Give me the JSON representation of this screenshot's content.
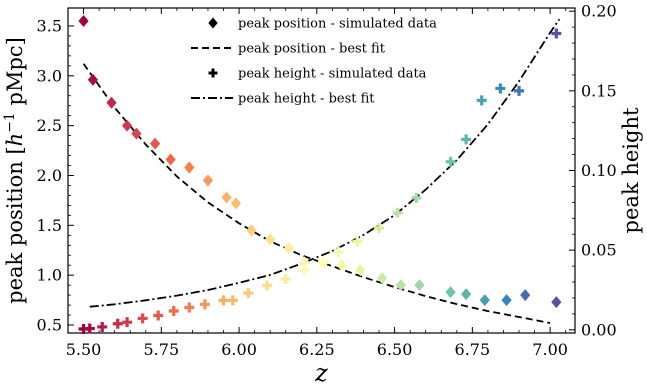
{
  "chart_data": {
    "type": "scatter",
    "title": "",
    "xlabel": "z",
    "ylabel_left": "peak position [h⁻¹ pMpc]",
    "ylabel_left_parts": [
      "peak position [",
      "h",
      "−1",
      " pMpc]"
    ],
    "ylabel_right": "peak height",
    "xlim": [
      5.45,
      7.08
    ],
    "ylim_left": [
      0.42,
      3.68
    ],
    "ylim_right": [
      -0.002,
      0.202
    ],
    "x_ticks": [
      5.5,
      5.75,
      6.0,
      6.25,
      6.5,
      6.75,
      7.0
    ],
    "x_tick_labels": [
      "5.50",
      "5.75",
      "6.00",
      "6.25",
      "6.50",
      "6.75",
      "7.00"
    ],
    "y_left_ticks": [
      0.5,
      1.0,
      1.5,
      2.0,
      2.5,
      3.0,
      3.5
    ],
    "y_left_tick_labels": [
      "0.5",
      "1.0",
      "1.5",
      "2.0",
      "2.5",
      "3.0",
      "3.5"
    ],
    "y_right_ticks": [
      0.0,
      0.05,
      0.1,
      0.15,
      0.2
    ],
    "y_right_tick_labels": [
      "0.00",
      "0.05",
      "0.10",
      "0.15",
      "0.20"
    ],
    "grid": false,
    "legend_placement": "top-center",
    "colormap": [
      "#9e0142",
      "#d53e4f",
      "#f46d43",
      "#fdae61",
      "#fee08b",
      "#ffffbf",
      "#e6f598",
      "#abdda4",
      "#66c2a5",
      "#3288bd",
      "#5e4fa2"
    ],
    "series": [
      {
        "name": "peak position - simulated data",
        "marker": "diamond",
        "axis": "left",
        "x": [
          5.5,
          5.53,
          5.59,
          5.64,
          5.67,
          5.73,
          5.78,
          5.84,
          5.9,
          5.96,
          5.99,
          6.04,
          6.1,
          6.16,
          6.21,
          6.27,
          6.33,
          6.39,
          6.46,
          6.52,
          6.58,
          6.68,
          6.73,
          6.79,
          6.86,
          6.92,
          7.02
        ],
        "y": [
          3.55,
          2.96,
          2.73,
          2.5,
          2.42,
          2.32,
          2.16,
          2.08,
          1.95,
          1.78,
          1.72,
          1.45,
          1.36,
          1.27,
          1.13,
          1.12,
          1.1,
          1.05,
          0.97,
          0.9,
          0.9,
          0.83,
          0.81,
          0.75,
          0.75,
          0.8,
          0.73
        ]
      },
      {
        "name": "peak position - best fit",
        "line_style": "dashed",
        "axis": "left",
        "x": [
          5.5,
          5.6,
          5.7,
          5.8,
          5.9,
          6.0,
          6.1,
          6.2,
          6.3,
          6.4,
          6.5,
          6.6,
          6.7,
          6.8,
          6.9,
          7.0
        ],
        "y": [
          3.12,
          2.68,
          2.31,
          1.99,
          1.73,
          1.52,
          1.34,
          1.2,
          1.09,
          0.98,
          0.88,
          0.79,
          0.71,
          0.64,
          0.58,
          0.52
        ]
      },
      {
        "name": "peak height - simulated data",
        "marker": "plus",
        "axis": "right",
        "x": [
          5.5,
          5.52,
          5.56,
          5.61,
          5.64,
          5.69,
          5.74,
          5.79,
          5.84,
          5.89,
          5.95,
          5.98,
          6.03,
          6.09,
          6.15,
          6.21,
          6.27,
          6.32,
          6.38,
          6.45,
          6.51,
          6.57,
          6.68,
          6.73,
          6.78,
          6.84,
          6.9,
          7.02
        ],
        "y": [
          0.0005,
          0.0008,
          0.0018,
          0.0038,
          0.0048,
          0.0072,
          0.009,
          0.0118,
          0.014,
          0.016,
          0.0185,
          0.0185,
          0.023,
          0.0278,
          0.0318,
          0.0375,
          0.043,
          0.0488,
          0.0555,
          0.0638,
          0.0735,
          0.0828,
          0.1055,
          0.1195,
          0.144,
          0.1515,
          0.15,
          0.186
        ]
      },
      {
        "name": "peak height - best fit",
        "line_style": "dashdot",
        "axis": "right",
        "x": [
          5.52,
          5.6,
          5.7,
          5.8,
          5.9,
          6.0,
          6.1,
          6.2,
          6.3,
          6.4,
          6.5,
          6.6,
          6.7,
          6.8,
          6.9,
          7.0,
          7.03
        ],
        "y": [
          0.0145,
          0.016,
          0.0185,
          0.0215,
          0.025,
          0.0295,
          0.0345,
          0.0415,
          0.0495,
          0.0595,
          0.072,
          0.088,
          0.1065,
          0.129,
          0.156,
          0.1865,
          0.195
        ]
      }
    ]
  }
}
